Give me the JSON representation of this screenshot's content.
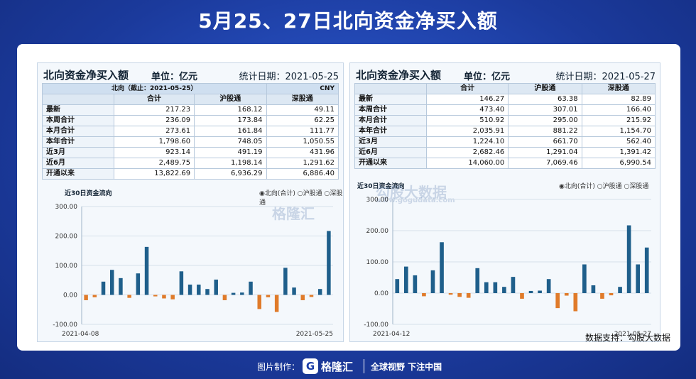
{
  "header": {
    "title": "5月25、27日北向资金净买入额"
  },
  "source": "数据支持：勾股大数据",
  "footer": {
    "made_by": "图片制作：",
    "brand": "格隆汇",
    "slogan": "全球视野 下注中国"
  },
  "watermarks": {
    "left": "格隆汇",
    "right": "勾股大数据",
    "right_url": "www.gogudata.com"
  },
  "panels": [
    {
      "title": "北向资金净买入额",
      "unit": "单位：亿元",
      "date": "统计日期：2021-05-25",
      "subheader": "北向（截止：2021-05-25）",
      "currency": "CNY",
      "columns": [
        "合计",
        "沪股通",
        "深股通"
      ],
      "rows": [
        {
          "label": "最新",
          "v": [
            "217.23",
            "168.12",
            "49.11"
          ]
        },
        {
          "label": "本周合计",
          "v": [
            "236.09",
            "173.84",
            "62.25"
          ]
        },
        {
          "label": "本月合计",
          "v": [
            "273.61",
            "161.84",
            "111.77"
          ]
        },
        {
          "label": "本年合计",
          "v": [
            "1,798.60",
            "748.05",
            "1,050.55"
          ]
        },
        {
          "label": "近3月",
          "v": [
            "923.14",
            "491.19",
            "431.96"
          ]
        },
        {
          "label": "近6月",
          "v": [
            "2,489.75",
            "1,198.14",
            "1,291.62"
          ]
        },
        {
          "label": "开通以来",
          "v": [
            "13,822.69",
            "6,936.29",
            "6,886.40"
          ]
        }
      ],
      "chart_title": "近30日资金流向",
      "legend": [
        "北向(合计)",
        "沪股通",
        "深股通"
      ],
      "chart_data": {
        "type": "bar",
        "ylim": [
          -100,
          300
        ],
        "yticks": [
          "300.00",
          "200.00",
          "100.00",
          "0.00",
          "-100.00"
        ],
        "x_start": "2021-04-08",
        "x_end": "2021-05-25",
        "values": [
          -18,
          -8,
          45,
          85,
          57,
          -10,
          73,
          163,
          -5,
          -12,
          -15,
          80,
          35,
          35,
          20,
          52,
          -18,
          7,
          8,
          45,
          -48,
          -8,
          -58,
          92,
          25,
          -18,
          -7,
          20,
          217
        ],
        "color_pos": "#1f5f8b",
        "color_neg": "#e07b2a"
      }
    },
    {
      "title": "北向资金净买入额",
      "unit": "单位：亿元",
      "date": "统计日期：2021-05-27",
      "columns": [
        "合计",
        "沪股通",
        "深股通"
      ],
      "rows": [
        {
          "label": "最新",
          "v": [
            "146.27",
            "63.38",
            "82.89"
          ]
        },
        {
          "label": "本周合计",
          "v": [
            "473.40",
            "307.01",
            "166.40"
          ]
        },
        {
          "label": "本月合计",
          "v": [
            "510.92",
            "295.00",
            "215.92"
          ]
        },
        {
          "label": "本年合计",
          "v": [
            "2,035.91",
            "881.22",
            "1,154.70"
          ]
        },
        {
          "label": "近3月",
          "v": [
            "1,224.10",
            "661.70",
            "562.40"
          ]
        },
        {
          "label": "近6月",
          "v": [
            "2,682.46",
            "1,291.04",
            "1,391.42"
          ]
        },
        {
          "label": "开通以来",
          "v": [
            "14,060.00",
            "7,069.46",
            "6,990.54"
          ]
        }
      ],
      "chart_title": "近30日资金流向",
      "legend": [
        "北向(合计)",
        "沪股通",
        "深股通"
      ],
      "chart_data": {
        "type": "bar",
        "ylim": [
          -100,
          300
        ],
        "yticks": [
          "300.00",
          "200.00",
          "100.00",
          "0.00",
          "-100.00"
        ],
        "x_start": "2021-04-12",
        "x_end": "2021-05-27",
        "values": [
          45,
          85,
          57,
          -10,
          73,
          163,
          -5,
          -12,
          -15,
          80,
          35,
          35,
          20,
          52,
          -18,
          7,
          8,
          45,
          -48,
          -8,
          -58,
          92,
          25,
          -18,
          -7,
          20,
          217,
          92,
          146
        ],
        "color_pos": "#1f5f8b",
        "color_neg": "#e07b2a"
      }
    }
  ]
}
